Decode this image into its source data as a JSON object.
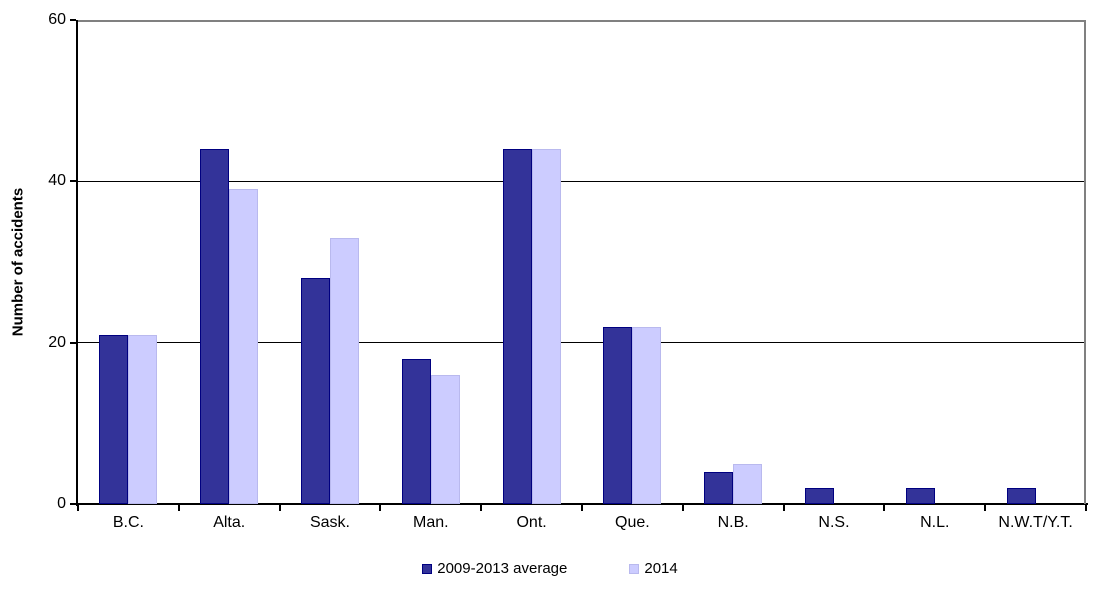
{
  "chart_data": {
    "type": "bar",
    "title": "",
    "xlabel": "",
    "ylabel": "Number of accidents",
    "ylim": [
      0,
      60
    ],
    "yticks": [
      0,
      20,
      40,
      60
    ],
    "grid_values": [
      20,
      40
    ],
    "grid": true,
    "legend_position": "bottom",
    "categories": [
      "B.C.",
      "Alta.",
      "Sask.",
      "Man.",
      "Ont.",
      "Que.",
      "N.B.",
      "N.S.",
      "N.L.",
      "N.W.T/Y.T."
    ],
    "series": [
      {
        "name": "2009-2013 average",
        "color": "#333399",
        "border_color": "#000080",
        "values": [
          21,
          44,
          28,
          18,
          44,
          22,
          4,
          2,
          2,
          2
        ]
      },
      {
        "name": "2014",
        "color": "#ccccff",
        "border_color": "#b9b9ee",
        "values": [
          21,
          39,
          33,
          16,
          44,
          22,
          5,
          0,
          0,
          0
        ]
      }
    ]
  },
  "axis_colors": {
    "axis_line": "#000000",
    "plot_border": "#808080",
    "gridline": "#000000"
  }
}
